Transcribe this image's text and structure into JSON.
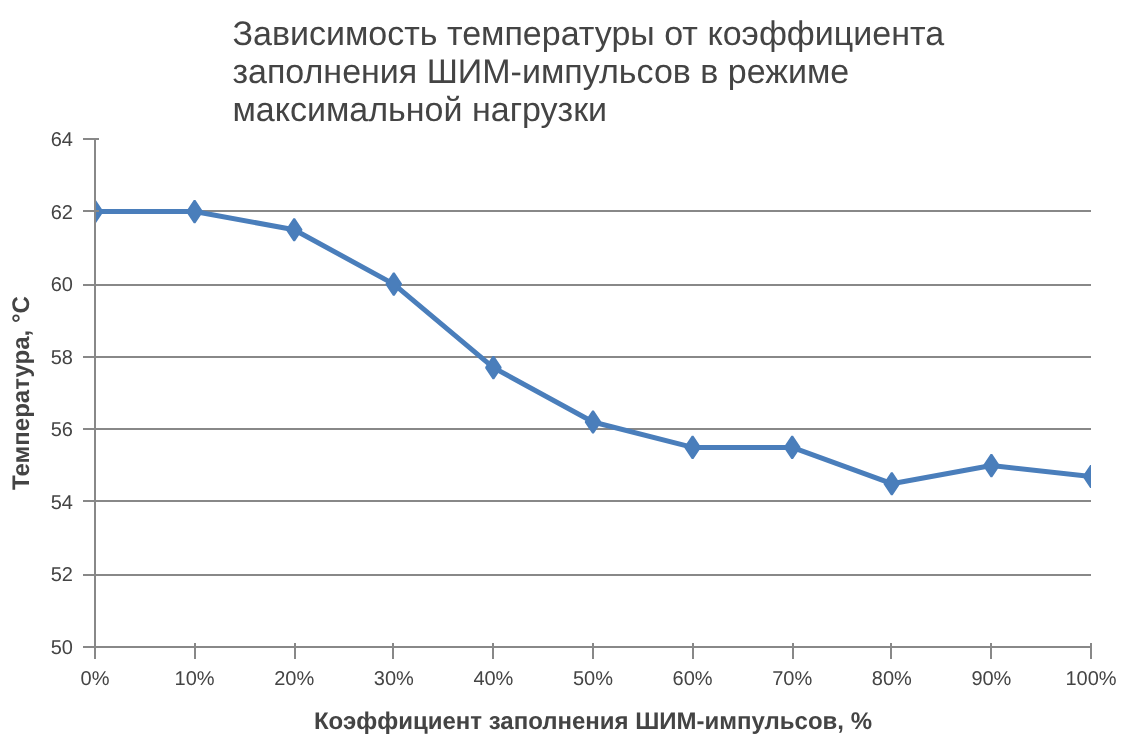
{
  "chart_data": {
    "type": "line",
    "title": "Зависимость температуры  от коэффициента\nзаполнения ШИМ-импульсов в режиме\nмаксимальной нагрузки",
    "xlabel": "Коэффициент заполнения ШИМ-импульсов, %",
    "ylabel": "Температура, °С",
    "categories": [
      "0%",
      "10%",
      "20%",
      "30%",
      "40%",
      "50%",
      "60%",
      "70%",
      "80%",
      "90%",
      "100%"
    ],
    "series": [
      {
        "color": "#4a7ebb",
        "values": [
          62,
          62,
          61.5,
          60,
          57.7,
          56.2,
          55.5,
          55.5,
          54.5,
          55,
          54.7
        ]
      }
    ],
    "ylim": [
      50,
      64
    ],
    "yticks": [
      50,
      52,
      54,
      56,
      58,
      60,
      62,
      64
    ],
    "grid": "y",
    "marker": "diamond",
    "line_style": "solid"
  }
}
